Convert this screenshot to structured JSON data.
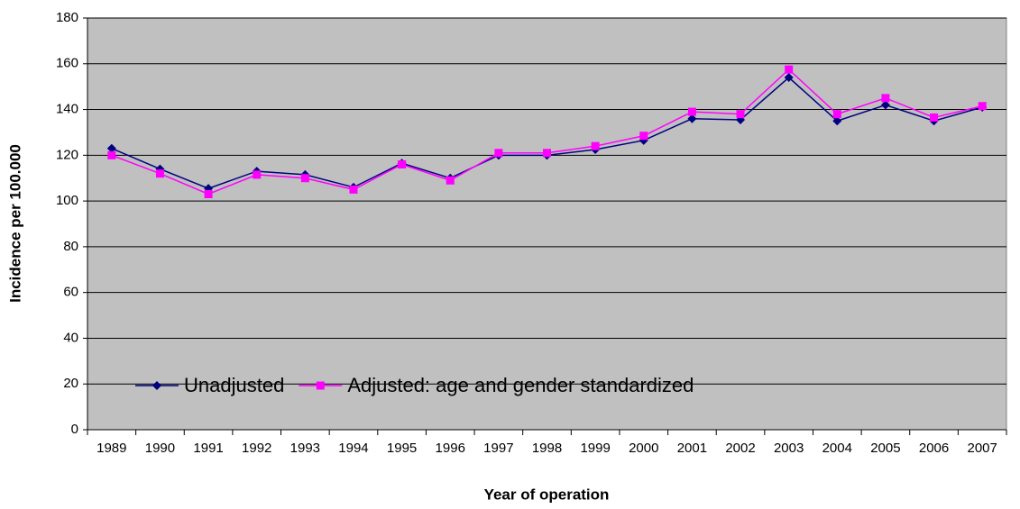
{
  "chart_data": {
    "type": "line",
    "x_label": "Year of operation",
    "y_label": "Incidence per 100.000",
    "categories": [
      "1989",
      "1990",
      "1991",
      "1992",
      "1993",
      "1994",
      "1995",
      "1996",
      "1997",
      "1998",
      "1999",
      "2000",
      "2001",
      "2002",
      "2003",
      "2004",
      "2005",
      "2006",
      "2007"
    ],
    "series": [
      {
        "name": "Unadjusted",
        "color": "#000080",
        "marker": "diamond",
        "values": [
          123,
          114,
          105.5,
          113,
          111.5,
          106,
          116.5,
          110,
          120,
          120,
          122.5,
          126.5,
          136,
          135.5,
          154,
          135,
          142,
          135,
          141
        ]
      },
      {
        "name": "Adjusted: age and gender standardized",
        "color": "#ff00ff",
        "marker": "square",
        "values": [
          120,
          112,
          103,
          111.5,
          110,
          105,
          116,
          109,
          121,
          121,
          124,
          128.5,
          139,
          138,
          157.5,
          138,
          145,
          136.5,
          141.5
        ]
      }
    ],
    "ylim": [
      0,
      180
    ],
    "yticks": [
      0,
      20,
      40,
      60,
      80,
      100,
      120,
      140,
      160,
      180
    ],
    "grid": true,
    "legend": "bottom",
    "plot_background": "#c0c0c0"
  }
}
